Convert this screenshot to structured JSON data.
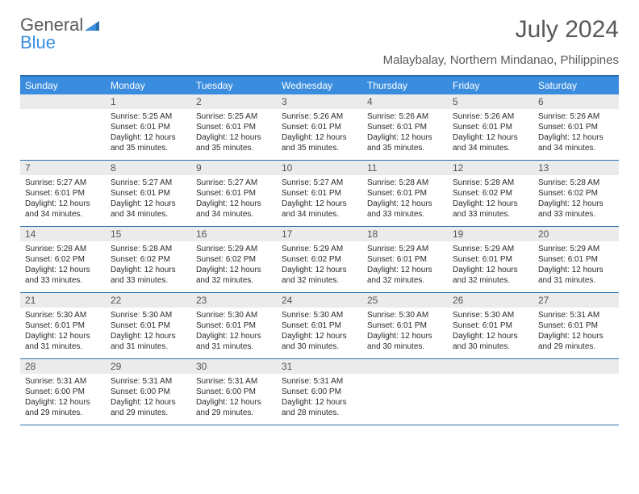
{
  "logo": {
    "line1": "General",
    "line2": "Blue"
  },
  "title": "July 2024",
  "subtitle": "Malaybalay, Northern Mindanao, Philippines",
  "colors": {
    "header_bg": "#3a8dde",
    "header_border": "#2b6fb0",
    "daynum_bg": "#ebebeb",
    "text": "#2b2b2b",
    "subtext": "#58595b"
  },
  "dayNames": [
    "Sunday",
    "Monday",
    "Tuesday",
    "Wednesday",
    "Thursday",
    "Friday",
    "Saturday"
  ],
  "weeks": [
    [
      {
        "n": "",
        "lines": []
      },
      {
        "n": "1",
        "lines": [
          "Sunrise: 5:25 AM",
          "Sunset: 6:01 PM",
          "Daylight: 12 hours",
          "and 35 minutes."
        ]
      },
      {
        "n": "2",
        "lines": [
          "Sunrise: 5:25 AM",
          "Sunset: 6:01 PM",
          "Daylight: 12 hours",
          "and 35 minutes."
        ]
      },
      {
        "n": "3",
        "lines": [
          "Sunrise: 5:26 AM",
          "Sunset: 6:01 PM",
          "Daylight: 12 hours",
          "and 35 minutes."
        ]
      },
      {
        "n": "4",
        "lines": [
          "Sunrise: 5:26 AM",
          "Sunset: 6:01 PM",
          "Daylight: 12 hours",
          "and 35 minutes."
        ]
      },
      {
        "n": "5",
        "lines": [
          "Sunrise: 5:26 AM",
          "Sunset: 6:01 PM",
          "Daylight: 12 hours",
          "and 34 minutes."
        ]
      },
      {
        "n": "6",
        "lines": [
          "Sunrise: 5:26 AM",
          "Sunset: 6:01 PM",
          "Daylight: 12 hours",
          "and 34 minutes."
        ]
      }
    ],
    [
      {
        "n": "7",
        "lines": [
          "Sunrise: 5:27 AM",
          "Sunset: 6:01 PM",
          "Daylight: 12 hours",
          "and 34 minutes."
        ]
      },
      {
        "n": "8",
        "lines": [
          "Sunrise: 5:27 AM",
          "Sunset: 6:01 PM",
          "Daylight: 12 hours",
          "and 34 minutes."
        ]
      },
      {
        "n": "9",
        "lines": [
          "Sunrise: 5:27 AM",
          "Sunset: 6:01 PM",
          "Daylight: 12 hours",
          "and 34 minutes."
        ]
      },
      {
        "n": "10",
        "lines": [
          "Sunrise: 5:27 AM",
          "Sunset: 6:01 PM",
          "Daylight: 12 hours",
          "and 34 minutes."
        ]
      },
      {
        "n": "11",
        "lines": [
          "Sunrise: 5:28 AM",
          "Sunset: 6:01 PM",
          "Daylight: 12 hours",
          "and 33 minutes."
        ]
      },
      {
        "n": "12",
        "lines": [
          "Sunrise: 5:28 AM",
          "Sunset: 6:02 PM",
          "Daylight: 12 hours",
          "and 33 minutes."
        ]
      },
      {
        "n": "13",
        "lines": [
          "Sunrise: 5:28 AM",
          "Sunset: 6:02 PM",
          "Daylight: 12 hours",
          "and 33 minutes."
        ]
      }
    ],
    [
      {
        "n": "14",
        "lines": [
          "Sunrise: 5:28 AM",
          "Sunset: 6:02 PM",
          "Daylight: 12 hours",
          "and 33 minutes."
        ]
      },
      {
        "n": "15",
        "lines": [
          "Sunrise: 5:28 AM",
          "Sunset: 6:02 PM",
          "Daylight: 12 hours",
          "and 33 minutes."
        ]
      },
      {
        "n": "16",
        "lines": [
          "Sunrise: 5:29 AM",
          "Sunset: 6:02 PM",
          "Daylight: 12 hours",
          "and 32 minutes."
        ]
      },
      {
        "n": "17",
        "lines": [
          "Sunrise: 5:29 AM",
          "Sunset: 6:02 PM",
          "Daylight: 12 hours",
          "and 32 minutes."
        ]
      },
      {
        "n": "18",
        "lines": [
          "Sunrise: 5:29 AM",
          "Sunset: 6:01 PM",
          "Daylight: 12 hours",
          "and 32 minutes."
        ]
      },
      {
        "n": "19",
        "lines": [
          "Sunrise: 5:29 AM",
          "Sunset: 6:01 PM",
          "Daylight: 12 hours",
          "and 32 minutes."
        ]
      },
      {
        "n": "20",
        "lines": [
          "Sunrise: 5:29 AM",
          "Sunset: 6:01 PM",
          "Daylight: 12 hours",
          "and 31 minutes."
        ]
      }
    ],
    [
      {
        "n": "21",
        "lines": [
          "Sunrise: 5:30 AM",
          "Sunset: 6:01 PM",
          "Daylight: 12 hours",
          "and 31 minutes."
        ]
      },
      {
        "n": "22",
        "lines": [
          "Sunrise: 5:30 AM",
          "Sunset: 6:01 PM",
          "Daylight: 12 hours",
          "and 31 minutes."
        ]
      },
      {
        "n": "23",
        "lines": [
          "Sunrise: 5:30 AM",
          "Sunset: 6:01 PM",
          "Daylight: 12 hours",
          "and 31 minutes."
        ]
      },
      {
        "n": "24",
        "lines": [
          "Sunrise: 5:30 AM",
          "Sunset: 6:01 PM",
          "Daylight: 12 hours",
          "and 30 minutes."
        ]
      },
      {
        "n": "25",
        "lines": [
          "Sunrise: 5:30 AM",
          "Sunset: 6:01 PM",
          "Daylight: 12 hours",
          "and 30 minutes."
        ]
      },
      {
        "n": "26",
        "lines": [
          "Sunrise: 5:30 AM",
          "Sunset: 6:01 PM",
          "Daylight: 12 hours",
          "and 30 minutes."
        ]
      },
      {
        "n": "27",
        "lines": [
          "Sunrise: 5:31 AM",
          "Sunset: 6:01 PM",
          "Daylight: 12 hours",
          "and 29 minutes."
        ]
      }
    ],
    [
      {
        "n": "28",
        "lines": [
          "Sunrise: 5:31 AM",
          "Sunset: 6:00 PM",
          "Daylight: 12 hours",
          "and 29 minutes."
        ]
      },
      {
        "n": "29",
        "lines": [
          "Sunrise: 5:31 AM",
          "Sunset: 6:00 PM",
          "Daylight: 12 hours",
          "and 29 minutes."
        ]
      },
      {
        "n": "30",
        "lines": [
          "Sunrise: 5:31 AM",
          "Sunset: 6:00 PM",
          "Daylight: 12 hours",
          "and 29 minutes."
        ]
      },
      {
        "n": "31",
        "lines": [
          "Sunrise: 5:31 AM",
          "Sunset: 6:00 PM",
          "Daylight: 12 hours",
          "and 28 minutes."
        ]
      },
      {
        "n": "",
        "lines": []
      },
      {
        "n": "",
        "lines": []
      },
      {
        "n": "",
        "lines": []
      }
    ]
  ]
}
